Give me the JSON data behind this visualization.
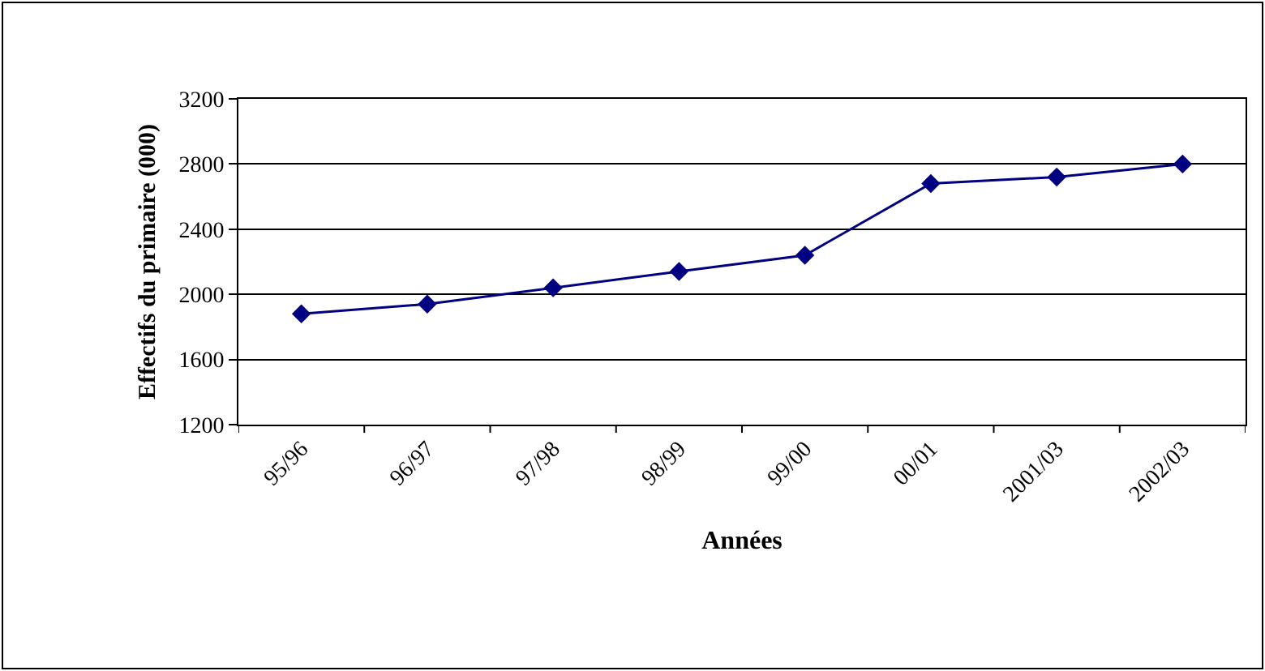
{
  "chart_data": {
    "type": "line",
    "xlabel": "Années",
    "ylabel": "Effectifs du primaire (000)",
    "categories": [
      "95/96",
      "96/97",
      "97/98",
      "98/99",
      "99/00",
      "00/01",
      "2001/03",
      "2002/03"
    ],
    "series": [
      {
        "color": "#000080",
        "values": [
          1880,
          1940,
          2040,
          2140,
          2240,
          2680,
          2720,
          2800
        ]
      }
    ],
    "ylim": [
      1200,
      3200
    ],
    "yticks": [
      1200,
      1600,
      2000,
      2400,
      2800,
      3200
    ],
    "grid": "y",
    "marker": "diamond",
    "line_style": "solid"
  }
}
